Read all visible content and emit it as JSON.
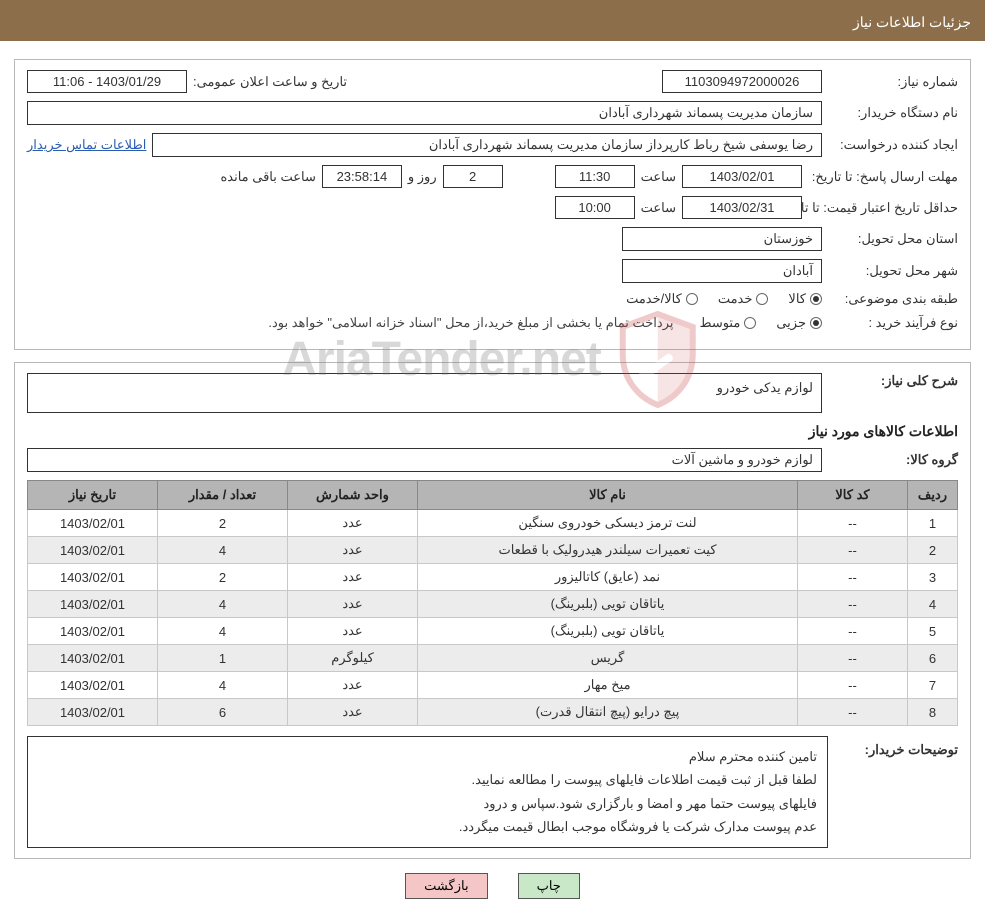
{
  "header": {
    "title": "جزئیات اطلاعات نیاز"
  },
  "fields": {
    "need_number_label": "شماره نیاز:",
    "need_number": "1103094972000026",
    "announce_datetime_label": "تاریخ و ساعت اعلان عمومی:",
    "announce_datetime": "1403/01/29 - 11:06",
    "buyer_org_label": "نام دستگاه خریدار:",
    "buyer_org": "سازمان مدیریت پسماند شهرداری آبادان",
    "requester_label": "ایجاد کننده درخواست:",
    "requester": "رضا یوسفی شیخ رباط کارپرداز سازمان مدیریت پسماند شهرداری آبادان",
    "contact_link": "اطلاعات تماس خریدار",
    "reply_deadline_label": "مهلت ارسال پاسخ: تا تاریخ:",
    "reply_deadline_date": "1403/02/01",
    "time_label": "ساعت",
    "reply_deadline_time": "11:30",
    "remain_days": "2",
    "days_and_label": "روز و",
    "remain_time": "23:58:14",
    "remain_suffix": "ساعت باقی مانده",
    "price_validity_label": "حداقل تاریخ اعتبار قیمت: تا تاریخ:",
    "price_validity_date": "1403/02/31",
    "price_validity_time": "10:00",
    "delivery_province_label": "استان محل تحویل:",
    "delivery_province": "خوزستان",
    "delivery_city_label": "شهر محل تحویل:",
    "delivery_city": "آبادان",
    "category_label": "طبقه بندی موضوعی:",
    "cat_goods": "کالا",
    "cat_service": "خدمت",
    "cat_goods_service": "کالا/خدمت",
    "purchase_type_label": "نوع فرآیند خرید :",
    "pt_minor": "جزیی",
    "pt_medium": "متوسط",
    "purchase_note": "پرداخت تمام یا بخشی از مبلغ خرید،از محل \"اسناد خزانه اسلامی\" خواهد بود."
  },
  "need": {
    "overall_label": "شرح کلی نیاز:",
    "overall_text": "لوازم یدکی خودرو",
    "goods_section_title": "اطلاعات کالاهای مورد نیاز",
    "group_label": "گروه کالا:",
    "group_value": "لوازم خودرو و ماشین آلات"
  },
  "table": {
    "headers": {
      "idx": "ردیف",
      "code": "کد کالا",
      "name": "نام کالا",
      "unit": "واحد شمارش",
      "qty": "تعداد / مقدار",
      "date": "تاریخ نیاز"
    },
    "rows": [
      {
        "idx": "1",
        "code": "--",
        "name": "لنت ترمز دیسکی خودروی سنگین",
        "unit": "عدد",
        "qty": "2",
        "date": "1403/02/01"
      },
      {
        "idx": "2",
        "code": "--",
        "name": "کیت تعمیرات سیلندر هیدرولیک با قطعات",
        "unit": "عدد",
        "qty": "4",
        "date": "1403/02/01"
      },
      {
        "idx": "3",
        "code": "--",
        "name": "نمد (عایق) کاتالیزور",
        "unit": "عدد",
        "qty": "2",
        "date": "1403/02/01"
      },
      {
        "idx": "4",
        "code": "--",
        "name": "یاتاقان تویی (بلبرینگ)",
        "unit": "عدد",
        "qty": "4",
        "date": "1403/02/01"
      },
      {
        "idx": "5",
        "code": "--",
        "name": "یاتاقان تویی (بلبرینگ)",
        "unit": "عدد",
        "qty": "4",
        "date": "1403/02/01"
      },
      {
        "idx": "6",
        "code": "--",
        "name": "گریس",
        "unit": "کیلوگرم",
        "qty": "1",
        "date": "1403/02/01"
      },
      {
        "idx": "7",
        "code": "--",
        "name": "میخ مهار",
        "unit": "عدد",
        "qty": "4",
        "date": "1403/02/01"
      },
      {
        "idx": "8",
        "code": "--",
        "name": "پیچ درایو (پیچ انتقال قدرت)",
        "unit": "عدد",
        "qty": "6",
        "date": "1403/02/01"
      }
    ]
  },
  "buyer_desc": {
    "label": "توضیحات خریدار:",
    "line1": "تامین کننده محترم سلام",
    "line2": "لطفا قبل از ثبت قیمت اطلاعات فایلهای پیوست را مطالعه نمایید.",
    "line3": "فایلهای پیوست حتما مهر و امضا و بارگزاری شود.سپاس و درود",
    "line4": "عدم پیوست مدارک شرکت یا فروشگاه موجب ابطال قیمت میگردد."
  },
  "buttons": {
    "print": "چاپ",
    "back": "بازگشت"
  },
  "watermark": {
    "text": "AriaTender.net",
    "shield_stroke": "#c94444",
    "shield_fill_opacity": "0.0"
  },
  "colors": {
    "header_bg": "#8c6f4a",
    "header_text": "#ffffff",
    "border": "#b8b8b8",
    "field_border": "#333333",
    "link": "#2a5db0",
    "th_bg": "#b5b5b5",
    "row_alt": "#ececec",
    "btn_print_bg": "#c8e8c8",
    "btn_back_bg": "#f4c6c6"
  }
}
